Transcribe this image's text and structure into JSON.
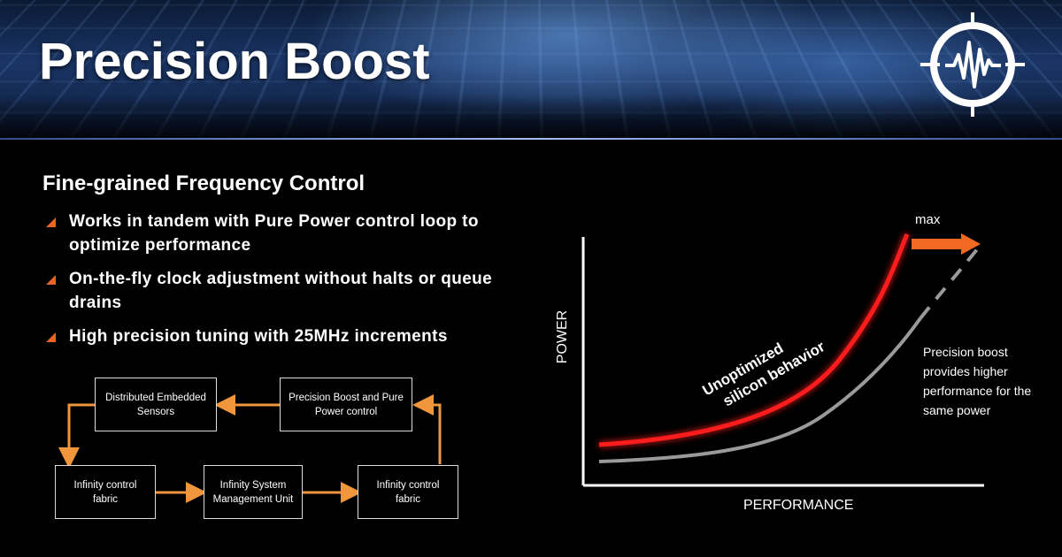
{
  "slide": {
    "title": "Precision Boost",
    "subtitle": "Fine-grained Frequency Control",
    "bullets": [
      "Works in tandem with Pure Power control loop to optimize performance",
      "On-the-fly clock adjustment without halts or queue drains",
      "High precision tuning with 25MHz increments"
    ],
    "bullet_color": "#e8652a"
  },
  "logo": {
    "icon": "waveform-crosshair-logo-icon"
  },
  "diagram": {
    "boxes": {
      "sensors": "Distributed Embedded Sensors",
      "pb_control": "Precision Boost and Pure Power control",
      "fabric_left": "Infinity control fabric",
      "smu": "Infinity System Management Unit",
      "fabric_right": "Infinity control fabric"
    },
    "arrow_color": "#f0963c"
  },
  "chart_data": {
    "type": "line",
    "xlabel": "PERFORMANCE",
    "ylabel": "POWER",
    "annotations": {
      "max": "max",
      "red_curve": "Unoptimized silicon behavior",
      "note": "Precision boost provides higher performance for the same power"
    },
    "series": [
      {
        "name": "Unoptimized silicon behavior",
        "color": "#ff1a1a"
      },
      {
        "color": "#9a9a9a"
      }
    ],
    "arrow_color": "#f26a21"
  }
}
